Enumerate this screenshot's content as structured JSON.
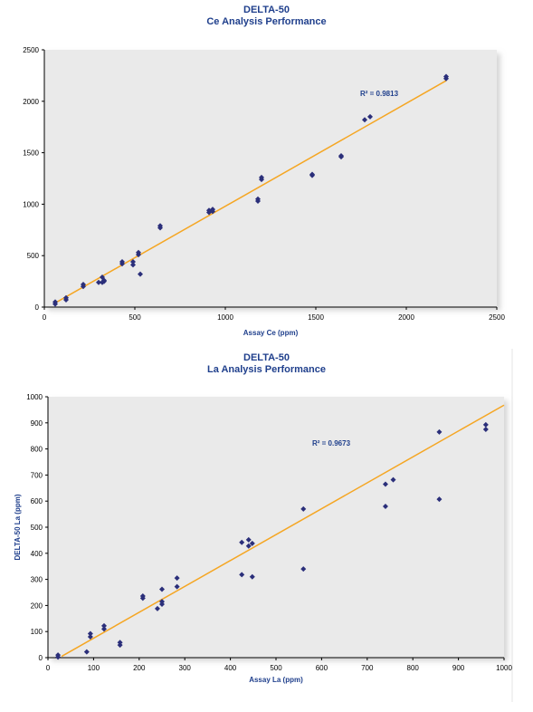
{
  "colors": {
    "title": "#1f3f8c",
    "point": "#2b2f7a",
    "trendline": "#f5a623",
    "plot_bg": "#eaeaea",
    "axis": "#000000"
  },
  "charts": [
    {
      "title_line1": "DELTA-50",
      "title_line2": "Ce Analysis Performance",
      "r2_label": "R² = 0.9813"
    },
    {
      "title_line1": "DELTA-50",
      "title_line2": "La Analysis Performance",
      "r2_label": "R² = 0.9673"
    }
  ],
  "chart_data": [
    {
      "type": "scatter",
      "title": "DELTA-50 Ce Analysis Performance",
      "xlabel": "Assay Ce (ppm)",
      "ylabel": "",
      "xlim": [
        0,
        2500
      ],
      "ylim": [
        0,
        2500
      ],
      "xticks": [
        0,
        500,
        1000,
        1500,
        2000,
        2500
      ],
      "yticks": [
        0,
        500,
        1000,
        1500,
        2000,
        2500
      ],
      "grid": false,
      "trendline": {
        "x": [
          60,
          2220
        ],
        "y": [
          40,
          2200
        ]
      },
      "annotation": "R² = 0.9813",
      "x": [
        60,
        60,
        120,
        120,
        215,
        215,
        300,
        320,
        320,
        330,
        330,
        430,
        430,
        490,
        490,
        520,
        520,
        530,
        640,
        640,
        910,
        910,
        930,
        930,
        1180,
        1180,
        1200,
        1200,
        1480,
        1480,
        1640,
        1640,
        1770,
        1800,
        2220,
        2220
      ],
      "y": [
        30,
        50,
        70,
        90,
        200,
        220,
        240,
        290,
        240,
        260,
        250,
        420,
        440,
        410,
        440,
        510,
        530,
        320,
        770,
        790,
        920,
        940,
        930,
        950,
        1030,
        1050,
        1240,
        1260,
        1280,
        1290,
        1460,
        1470,
        1820,
        1850,
        2220,
        2240
      ]
    },
    {
      "type": "scatter",
      "title": "DELTA-50 La Analysis Performance",
      "xlabel": "Assay La (ppm)",
      "ylabel": "DELTA-50 La (ppm)",
      "xlim": [
        0,
        1000
      ],
      "ylim": [
        0,
        1000
      ],
      "xticks": [
        0,
        100,
        200,
        300,
        400,
        500,
        600,
        700,
        800,
        900,
        1000
      ],
      "yticks": [
        0,
        100,
        200,
        300,
        400,
        500,
        600,
        700,
        800,
        900,
        1000
      ],
      "grid": false,
      "trendline": {
        "x": [
          30,
          1000
        ],
        "y": [
          5,
          968
        ]
      },
      "annotation": "R² = 0.9673",
      "x": [
        22,
        22,
        85,
        93,
        93,
        123,
        123,
        158,
        158,
        208,
        208,
        240,
        250,
        250,
        250,
        283,
        283,
        425,
        425,
        440,
        440,
        448,
        448,
        560,
        560,
        740,
        740,
        757,
        858,
        858,
        960,
        960
      ],
      "y": [
        2,
        10,
        22,
        80,
        92,
        110,
        122,
        48,
        58,
        228,
        236,
        188,
        205,
        215,
        262,
        272,
        305,
        318,
        442,
        452,
        428,
        438,
        310,
        340,
        570,
        580,
        665,
        682,
        607,
        865,
        875,
        893
      ]
    }
  ]
}
